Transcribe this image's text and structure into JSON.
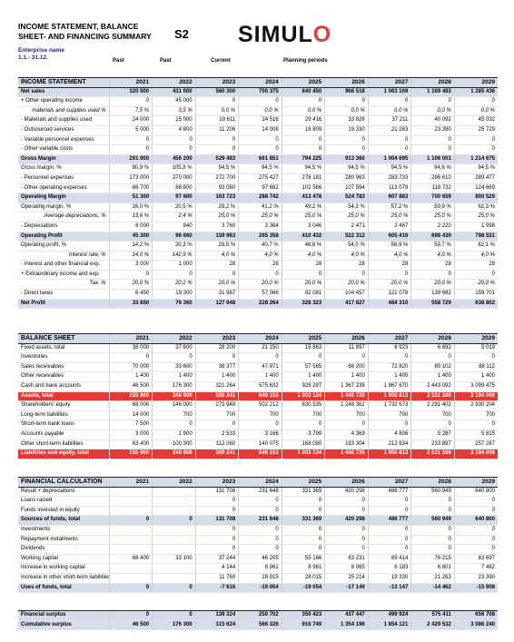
{
  "header": {
    "title": "INCOME STATEMENT, BALANCE\nSHEET- AND FINANCING SUMMARY",
    "code": "S2",
    "logo_text": "SIMUL",
    "logo_o": "O",
    "enterprise_label": "Enterprise name",
    "period": "1.1.- 31.12.",
    "col_past1": "Past",
    "col_past2": "Past",
    "col_current": "Current",
    "col_planning": "Planning periods"
  },
  "tables": [
    {
      "id": "income",
      "rows": [
        {
          "s": "h",
          "c": [
            "INCOME STATEMENT",
            "2021",
            "2022",
            "2023",
            "2024",
            "2025",
            "2026",
            "2027",
            "2028",
            "2029"
          ]
        },
        {
          "s": "b",
          "c": [
            "Net sales",
            "320 000",
            "431 000",
            "560 300",
            "700 375",
            "840 450",
            "966 518",
            "1 063 169",
            "1 169 483",
            "1 285 436"
          ]
        },
        {
          "s": "",
          "c": [
            "+ Other operating income",
            "0",
            "45 000",
            "0",
            "0",
            "0",
            "0",
            "0",
            "0",
            "0"
          ]
        },
        {
          "s": "it",
          "c": [
            "materials and supplies used %",
            "7,5 %",
            "3,5 %",
            "0,0 %",
            "0,0 %",
            "0,0 %",
            "0,0 %",
            "0,0 %",
            "0,0 %",
            "0,0 %"
          ]
        },
        {
          "s": "",
          "c": [
            "- Materials and supplies used",
            "24 000",
            "15 000",
            "19 611",
            "24 516",
            "29 416",
            "33 828",
            "37 211",
            "40 092",
            "45 032"
          ]
        },
        {
          "s": "",
          "c": [
            "- Outsourced services",
            "5 000",
            "4 800",
            "11 206",
            "14 008",
            "16 809",
            "19 330",
            "21 263",
            "23 390",
            "25 729"
          ]
        },
        {
          "s": "",
          "c": [
            "- Variable personnel expenses",
            "0",
            "0",
            "0",
            "0",
            "0",
            "0",
            "0",
            "0",
            "0"
          ]
        },
        {
          "s": "",
          "c": [
            "- Other variable costs",
            "0",
            "0",
            "0",
            "0",
            "0",
            "0",
            "0",
            "0",
            "0"
          ]
        },
        {
          "s": "b",
          "c": [
            "Gross Margin",
            "291 000",
            "456 200",
            "529 483",
            "661 851",
            "794 225",
            "913 360",
            "1 004 695",
            "1 106 001",
            "1 214 675"
          ]
        },
        {
          "s": "",
          "c": [
            "Gross margin, %",
            "90,9 %",
            "105,8 %",
            "94,5 %",
            "94,5 %",
            "94,5 %",
            "94,5 %",
            "94,5 %",
            "94,6 %",
            "94,5 %"
          ]
        },
        {
          "s": "",
          "c": [
            "- Personnel expenses",
            "173 000",
            "270 000",
            "272 700",
            "275 427",
            "278 181",
            "280 963",
            "283 733",
            "286 610",
            "289 477"
          ]
        },
        {
          "s": "",
          "c": [
            "- Other operating expenses",
            "66 700",
            "88 600",
            "93 080",
            "97 682",
            "102 566",
            "107 594",
            "113 079",
            "118 732",
            "124 669"
          ]
        },
        {
          "s": "b",
          "c": [
            "Operating Margin",
            "51 300",
            "97 600",
            "163 723",
            "288 742",
            "413 478",
            "524 783",
            "607 883",
            "700 659",
            "800 529"
          ]
        },
        {
          "s": "",
          "c": [
            "Operating margin, %",
            "16,0 %",
            "20,5 %",
            "29,2 %",
            "41,2 %",
            "49,2 %",
            "54,3 %",
            "57,2 %",
            "59,9 %",
            "62,3 %"
          ]
        },
        {
          "s": "it",
          "c": [
            "Average depreciations, %",
            "13,6 %",
            "2,4 %",
            "25,0 %",
            "25,0 %",
            "25,0 %",
            "25,0 %",
            "25,0 %",
            "25,0 %",
            "25,0 %"
          ]
        },
        {
          "s": "",
          "c": [
            "- Depreciations",
            "6 000",
            "940",
            "3 760",
            "3 384",
            "3 046",
            "2 471",
            "2 467",
            "2 220",
            "1 998"
          ]
        },
        {
          "s": "b",
          "c": [
            "Operating Profit",
            "45 300",
            "96 660",
            "159 963",
            "285 358",
            "410 432",
            "522 312",
            "605 416",
            "698 439",
            "798 531"
          ]
        },
        {
          "s": "",
          "c": [
            "Operating profit, %",
            "14,2 %",
            "20,3 %",
            "28,5 %",
            "40,7 %",
            "48,8 %",
            "54,0 %",
            "56,9 %",
            "59,7 %",
            "62,1 %"
          ]
        },
        {
          "s": "it",
          "c": [
            "Interest rate, %",
            "14,0 %",
            "142,9 %",
            "4,0 %",
            "4,0 %",
            "4,0 %",
            "4,0 %",
            "4,0 %",
            "4,0 %",
            "4,0 %"
          ]
        },
        {
          "s": "",
          "c": [
            "- Interest and other financial exp.",
            "3 000",
            "1 000",
            "28",
            "28",
            "28",
            "28",
            "28",
            "28",
            "28"
          ]
        },
        {
          "s": "",
          "c": [
            "+ Extraordinary income and exp.",
            "0",
            "0",
            "0",
            "0",
            "0",
            "0",
            "0",
            "0",
            "0"
          ]
        },
        {
          "s": "it",
          "c": [
            "Tax, %",
            "20,0 %",
            "20,2 %",
            "20,0 %",
            "20,0 %",
            "20,0 %",
            "20,0 %",
            "20,0 %",
            "20,0 %",
            "20,0 %"
          ]
        },
        {
          "s": "",
          "c": [
            "- Direct taxes",
            "8 450",
            "19 300",
            "31 987",
            "57 066",
            "82 081",
            "104 457",
            "121 078",
            "139 682",
            "159 701"
          ]
        },
        {
          "s": "b",
          "c": [
            "Net Profit",
            "33 850",
            "76 360",
            "127 948",
            "228 264",
            "328 323",
            "417 827",
            "484 310",
            "558 729",
            "638 802"
          ]
        }
      ]
    },
    {
      "id": "balance",
      "rows": [
        {
          "s": "h",
          "c": [
            "BALANCE SHEET",
            "2021",
            "2022",
            "2023",
            "2024",
            "2025",
            "2026",
            "2027",
            "2028",
            "2029"
          ]
        },
        {
          "s": "",
          "c": [
            "Fixed assets, total",
            "38 000",
            "37 600",
            "28 200",
            "21 150",
            "15 863",
            "11 897",
            "8 923",
            "6 692",
            "5 019"
          ]
        },
        {
          "s": "",
          "c": [
            "Inventories",
            "0",
            "0",
            "0",
            "0",
            "0",
            "0",
            "0",
            "0",
            "0"
          ]
        },
        {
          "s": "",
          "c": [
            "Sales receivables",
            "70 000",
            "33 600",
            "38 377",
            "47 971",
            "57 565",
            "66 200",
            "72 820",
            "80 102",
            "88 112"
          ]
        },
        {
          "s": "",
          "c": [
            "Other receivables",
            "1 400",
            "1 400",
            "1 400",
            "1 400",
            "1 400",
            "1 400",
            "1 400",
            "1 400",
            "1 400"
          ]
        },
        {
          "s": "",
          "c": [
            "Cash and bank accounts",
            "46 500",
            "176 300",
            "321 264",
            "575 632",
            "928 297",
            "1 367 239",
            "1 867 670",
            "2 443 092",
            "3 099 475"
          ]
        },
        {
          "s": "r",
          "c": [
            "Assets, total",
            "155 900",
            "248 900",
            "389 241",
            "646 153",
            "1 003 124",
            "1 446 735",
            "1 950 813",
            "2 531 286",
            "3 194 006"
          ]
        },
        {
          "s": "",
          "c": [
            "Shareholders' equity",
            "68 000",
            "146 000",
            "273 948",
            "502 212",
            "830 535",
            "1 248 362",
            "1 732 673",
            "2 291 402",
            "2 930 204"
          ]
        },
        {
          "s": "",
          "c": [
            "Long-term liabilities",
            "14 000",
            "700",
            "700",
            "700",
            "700",
            "700",
            "700",
            "700",
            "700"
          ]
        },
        {
          "s": "",
          "c": [
            "Short-term bank loans",
            "7 500",
            "0",
            "0",
            "0",
            "0",
            "0",
            "0",
            "0",
            "0"
          ]
        },
        {
          "s": "",
          "c": [
            "Accounts payable",
            "3 000",
            "1 900",
            "2 533",
            "3 166",
            "3 799",
            "4 369",
            "4 806",
            "5 287",
            "5 815"
          ]
        },
        {
          "s": "",
          "c": [
            "Other short-term liabilities",
            "63 400",
            "100 300",
            "112 060",
            "140 075",
            "168 090",
            "193 304",
            "212 634",
            "233 897",
            "257 287"
          ]
        },
        {
          "s": "r",
          "c": [
            "Liabilities and equity, total",
            "155 900",
            "248 900",
            "389 241",
            "646 153",
            "1 003 124",
            "1 446 735",
            "1 950 813",
            "2 531 286",
            "3 194 006"
          ]
        }
      ]
    },
    {
      "id": "financing",
      "rows": [
        {
          "s": "h",
          "c": [
            "FINANCIAL CALCULATION",
            "2021",
            "2022",
            "2023",
            "2024",
            "2025",
            "2026",
            "2027",
            "2028",
            "2029"
          ]
        },
        {
          "s": "",
          "c": [
            "Result + depreciations",
            "",
            "",
            "131 708",
            "231 648",
            "331 369",
            "420 298",
            "486 777",
            "560 949",
            "640 800"
          ]
        },
        {
          "s": "",
          "c": [
            "Loans raised",
            "",
            "",
            "0",
            "0",
            "0",
            "0",
            "0",
            "0",
            "0"
          ]
        },
        {
          "s": "",
          "c": [
            "Funds invested in equity",
            "",
            "",
            "0",
            "0",
            "0",
            "0",
            "0",
            "0",
            "0"
          ]
        },
        {
          "s": "b",
          "c": [
            "Sources of funds, total",
            "0",
            "0",
            "131 708",
            "231 648",
            "331 369",
            "420 298",
            "486 777",
            "560 949",
            "640 800"
          ]
        },
        {
          "s": "",
          "c": [
            "Investments",
            "",
            "",
            "0",
            "0",
            "0",
            "0",
            "0",
            "0",
            "0"
          ]
        },
        {
          "s": "",
          "c": [
            "Repayment instalments",
            "",
            "",
            "0",
            "0",
            "0",
            "0",
            "0",
            "0",
            "0"
          ]
        },
        {
          "s": "",
          "c": [
            "Dividends",
            "",
            "",
            "0",
            "0",
            "0",
            "0",
            "0",
            "0",
            "0"
          ]
        },
        {
          "s": "",
          "c": [
            "Working capital",
            "68 400",
            "33 100",
            "37 244",
            "46 205",
            "55 166",
            "63 231",
            "69 414",
            "76 215",
            "83 697"
          ]
        },
        {
          "s": "",
          "c": [
            "Increase in working capital",
            "",
            "",
            "4 144",
            "8 961",
            "8 961",
            "8 065",
            "6 183",
            "6 801",
            "7 482"
          ]
        },
        {
          "s": "",
          "c": [
            "Increase in other short-term liabilities",
            "",
            "",
            "11 760",
            "28 015",
            "28 015",
            "25 214",
            "19 330",
            "21 263",
            "23 390"
          ]
        },
        {
          "s": "b",
          "c": [
            "Uses of funds, total",
            "0",
            "0",
            "-7 616",
            "-19 054",
            "-19 054",
            "-17 149",
            "-13 147",
            "-14 462",
            "-15 908"
          ]
        }
      ]
    },
    {
      "id": "surplus",
      "rows": [
        {
          "s": "b bt",
          "c": [
            "Financial surplus",
            "0",
            "0",
            "139 324",
            "250 702",
            "350 423",
            "437 447",
            "499 924",
            "575 411",
            "656 708"
          ]
        },
        {
          "s": "b",
          "c": [
            "Cumulative surplus",
            "46 500",
            "176 300",
            "315 624",
            "566 326",
            "916 749",
            "1 354 196",
            "1 854 121",
            "2 429 532",
            "3 086 240"
          ]
        }
      ]
    }
  ]
}
